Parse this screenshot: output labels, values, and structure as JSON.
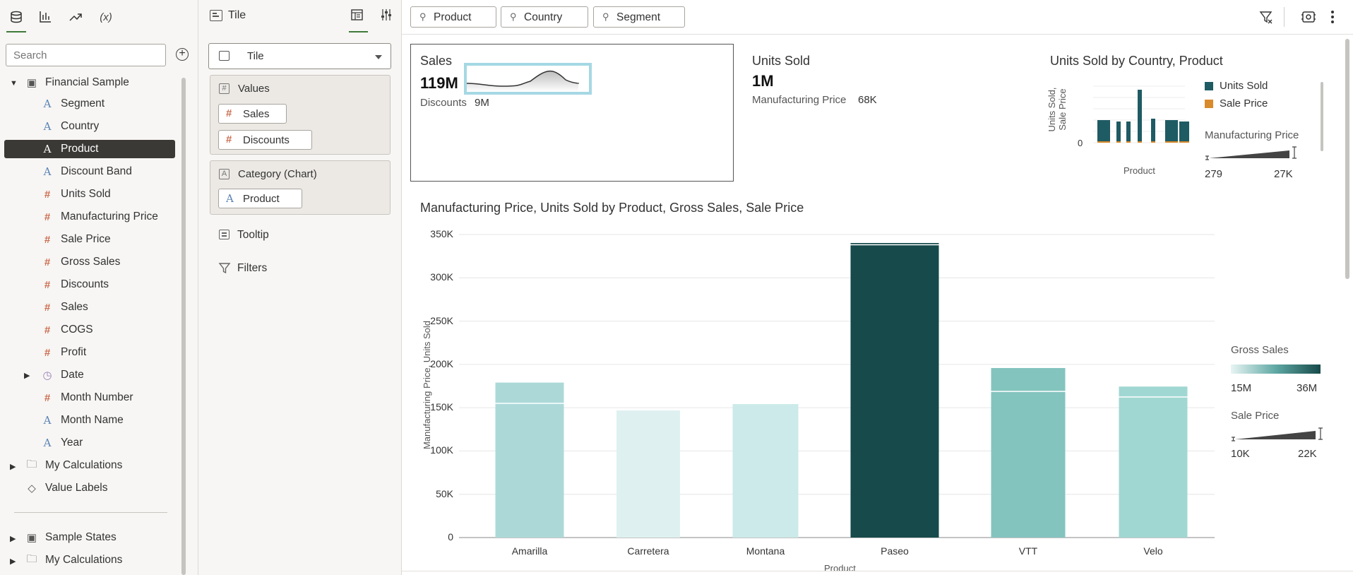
{
  "data_panel": {
    "search_placeholder": "Search",
    "dataset": "Financial Sample",
    "fields": [
      {
        "label": "Segment",
        "type": "attribute"
      },
      {
        "label": "Country",
        "type": "attribute"
      },
      {
        "label": "Product",
        "type": "attribute",
        "selected": true
      },
      {
        "label": "Discount Band",
        "type": "attribute"
      },
      {
        "label": "Units Sold",
        "type": "measure"
      },
      {
        "label": "Manufacturing Price",
        "type": "measure"
      },
      {
        "label": "Sale Price",
        "type": "measure"
      },
      {
        "label": "Gross Sales",
        "type": "measure"
      },
      {
        "label": "Discounts",
        "type": "measure"
      },
      {
        "label": "Sales",
        "type": "measure"
      },
      {
        "label": "COGS",
        "type": "measure"
      },
      {
        "label": "Profit",
        "type": "measure"
      },
      {
        "label": "Date",
        "type": "date"
      },
      {
        "label": "Month Number",
        "type": "measure"
      },
      {
        "label": "Month Name",
        "type": "attribute"
      },
      {
        "label": "Year",
        "type": "attribute"
      }
    ],
    "my_calculations": "My Calculations",
    "value_labels": "Value Labels",
    "sample_states": "Sample States",
    "my_calculations_2": "My Calculations"
  },
  "grammar": {
    "title": "Tile",
    "viz_type": "Tile",
    "values_title": "Values",
    "values": [
      "Sales",
      "Discounts"
    ],
    "category_title": "Category (Chart)",
    "category": "Product",
    "tooltip": "Tooltip",
    "filters": "Filters"
  },
  "filter_bar": {
    "pills": [
      "Product",
      "Country",
      "Segment"
    ]
  },
  "tile_sales": {
    "title": "Sales",
    "value": "119M",
    "sub_label": "Discounts",
    "sub_value": "9M"
  },
  "tile_units": {
    "title": "Units Sold",
    "value": "1M",
    "sub_label": "Manufacturing Price",
    "sub_value": "68K"
  },
  "mini_chart": {
    "title": "Units Sold by Country, Product",
    "ylabel_line1": "Units Sold,",
    "ylabel_line2": "Sale Price",
    "y_zero": "0",
    "xlabel": "Product",
    "legend": [
      {
        "name": "Units Sold",
        "color": "#1f5b63"
      },
      {
        "name": "Sale Price",
        "color": "#d98a2b"
      }
    ],
    "size_title": "Manufacturing Price",
    "size_min": "279",
    "size_max": "27K"
  },
  "colors": {
    "accent": "#3f7a3a",
    "selected_row": "#3b3935",
    "tile_border": "#7fc7d6"
  },
  "chart_data": {
    "type": "bar",
    "title": "Manufacturing Price, Units Sold by Product, Gross Sales, Sale Price",
    "xlabel": "Product",
    "ylabel": "Manufacturing Price, Units Sold",
    "categories": [
      "Amarilla",
      "Carretera",
      "Montana",
      "Paseo",
      "VTT",
      "Velo"
    ],
    "series": [
      {
        "name": "Units Sold",
        "values": [
          155000,
          146800,
          154200,
          338200,
          168800,
          162400
        ]
      },
      {
        "name": "Manufacturing Price",
        "values": [
          24000,
          0,
          0,
          2000,
          27000,
          12000
        ]
      }
    ],
    "ylim": [
      0,
      350000
    ],
    "yticks": [
      "0",
      "50K",
      "100K",
      "150K",
      "200K",
      "250K",
      "300K",
      "350K"
    ],
    "bar_colors": [
      "#acd9d8",
      "#def1f0",
      "#cceae9",
      "#174a4a",
      "#84c4bf",
      "#a1d7d2"
    ],
    "grid": true,
    "color_legend": {
      "title": "Gross Sales",
      "min": "15M",
      "max": "36M"
    },
    "size_legend": {
      "title": "Sale Price",
      "min": "10K",
      "max": "22K"
    }
  }
}
